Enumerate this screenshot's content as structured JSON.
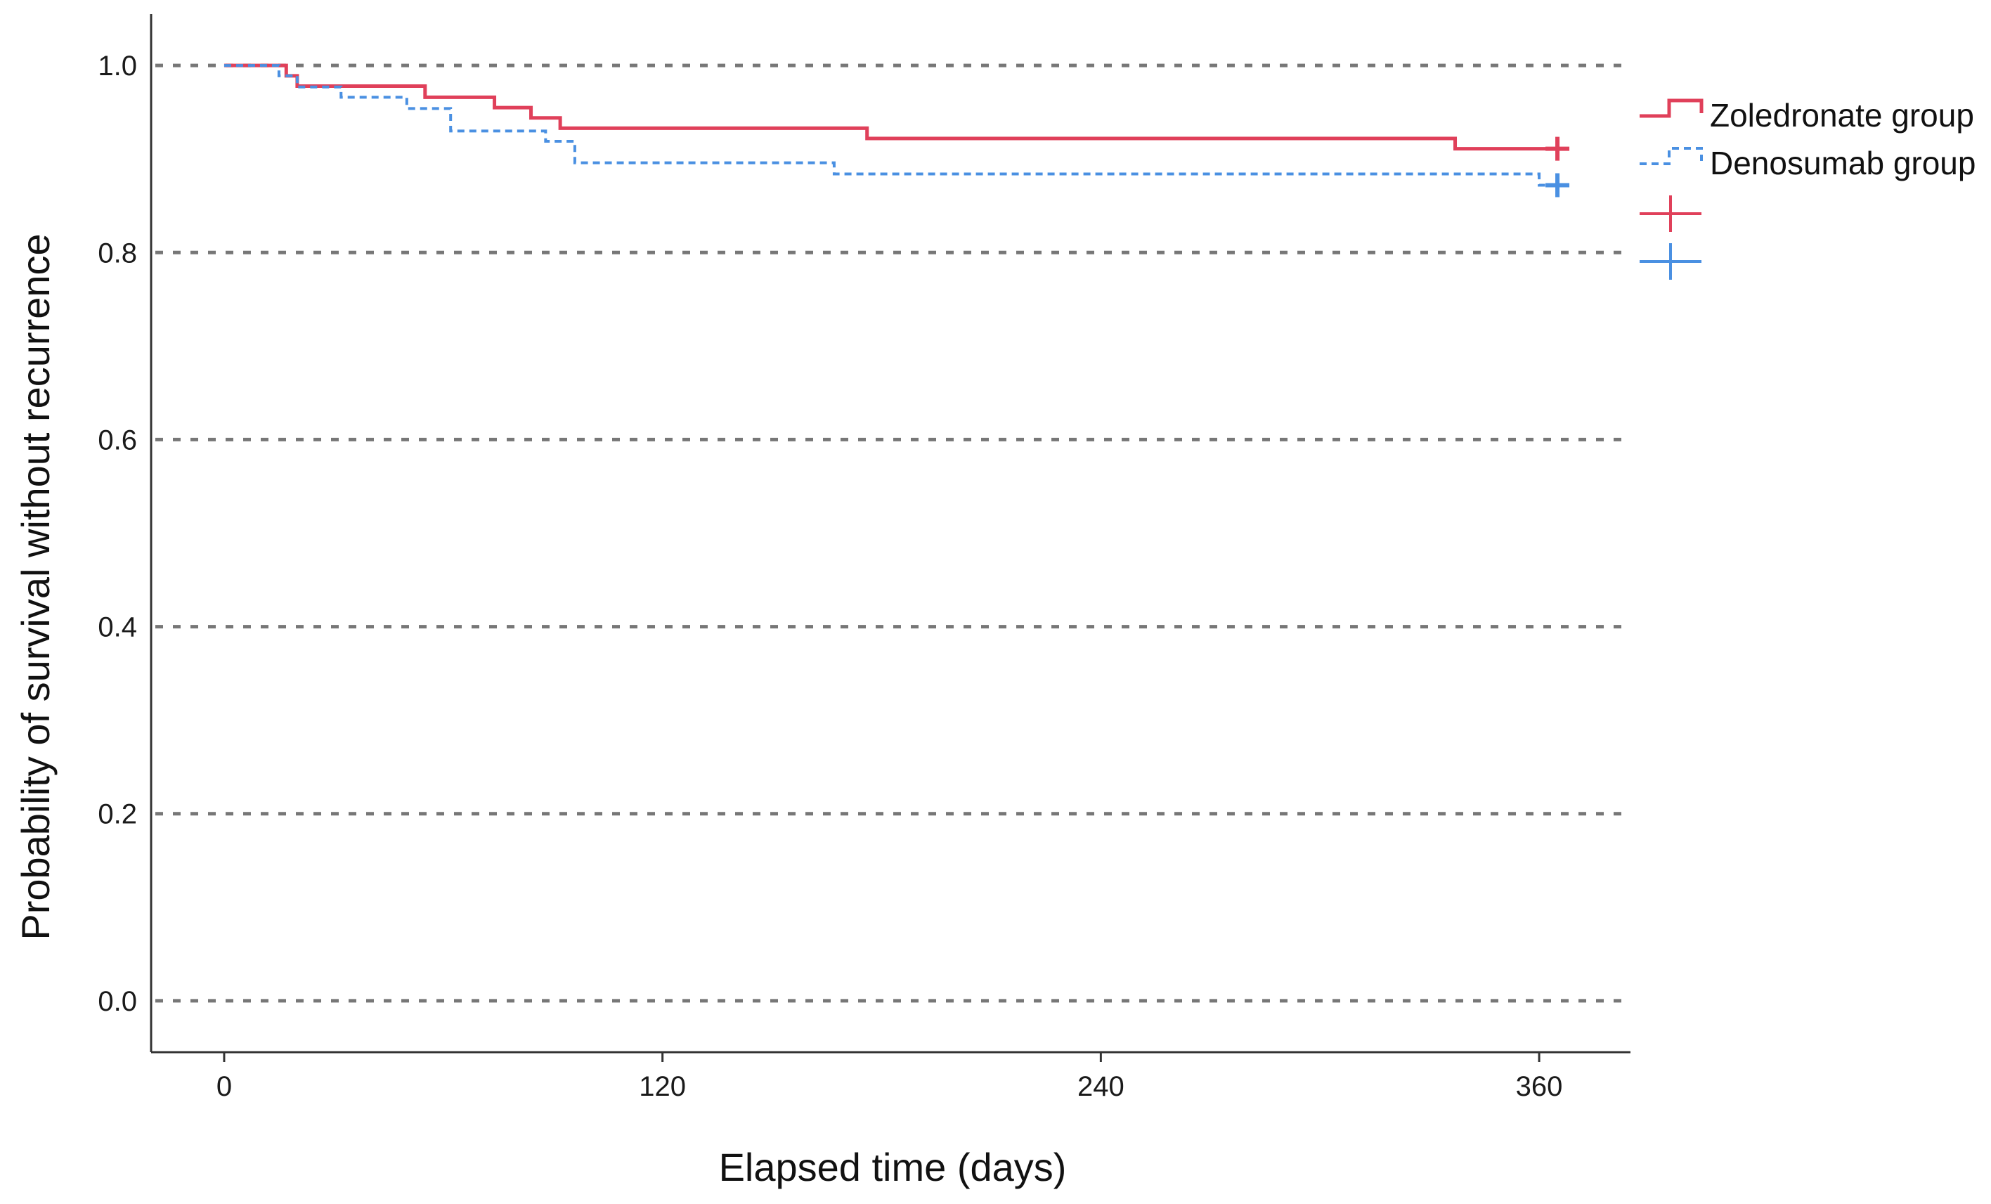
{
  "chart_data": {
    "type": "line",
    "step": true,
    "xlabel": "Elapsed time (days)",
    "ylabel": "Probability of survival without recurrence",
    "xlim": [
      -20,
      385
    ],
    "ylim": [
      -0.055,
      1.055
    ],
    "xticks": [
      0,
      120,
      240,
      360
    ],
    "xtick_labels": [
      "0",
      "120",
      "240",
      "360"
    ],
    "yticks": [
      0.0,
      0.2,
      0.4,
      0.6,
      0.8,
      1.0
    ],
    "ytick_labels": [
      "0.0",
      "0.2",
      "0.4",
      "0.6",
      "0.8",
      "1.0"
    ],
    "grid": "horizontal dashed",
    "legend_position": "top-right",
    "series": [
      {
        "name": "Zoledronate group",
        "color": "#e0405a",
        "line_style": "solid",
        "x": [
          0,
          17,
          20,
          25,
          55,
          74,
          84,
          92,
          176,
          337,
          365
        ],
        "y": [
          1.0,
          0.989,
          0.978,
          0.978,
          0.966,
          0.955,
          0.944,
          0.933,
          0.922,
          0.911,
          0.911
        ],
        "censored": [
          {
            "x": 365,
            "y": 0.911
          }
        ]
      },
      {
        "name": "Denosumab group",
        "color": "#4a90e2",
        "line_style": "dashed",
        "x": [
          0,
          15,
          20,
          32,
          50,
          62,
          88,
          96,
          167,
          360,
          365
        ],
        "y": [
          1.0,
          0.989,
          0.977,
          0.966,
          0.954,
          0.93,
          0.919,
          0.896,
          0.884,
          0.872,
          0.872
        ],
        "censored": [
          {
            "x": 365,
            "y": 0.872
          }
        ]
      }
    ],
    "legend_censor_markers": [
      {
        "color": "#e0405a"
      },
      {
        "color": "#4a90e2"
      }
    ]
  }
}
